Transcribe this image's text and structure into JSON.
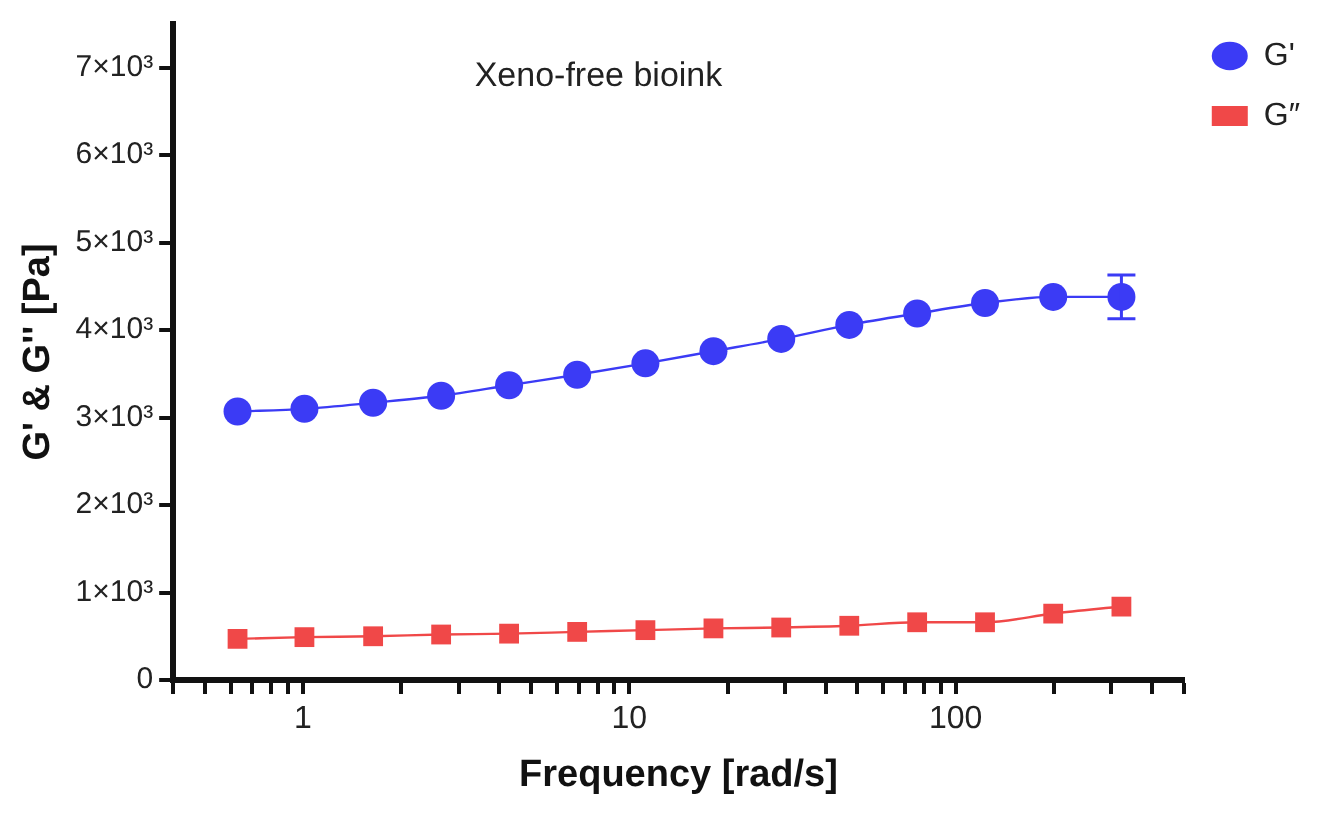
{
  "chart_data": {
    "type": "line",
    "title": "Xeno-free bioink",
    "xlabel": "Frequency [rad/s]",
    "ylabel": "G' & G'' [Pa]",
    "x": [
      0.63,
      1.01,
      1.64,
      2.65,
      4.28,
      6.92,
      11.2,
      18.1,
      29.2,
      47.2,
      76.2,
      123,
      199,
      322
    ],
    "series": [
      {
        "name": "G'",
        "color": "#3b3bf5",
        "marker": "circle",
        "values": [
          3070,
          3100,
          3170,
          3250,
          3370,
          3490,
          3620,
          3760,
          3900,
          4060,
          4190,
          4310,
          4380,
          4380
        ],
        "errors": [
          null,
          null,
          null,
          null,
          null,
          null,
          null,
          null,
          null,
          null,
          null,
          null,
          null,
          250
        ]
      },
      {
        "name": "G″",
        "color": "#f04848",
        "marker": "square",
        "values": [
          470,
          490,
          500,
          520,
          530,
          550,
          570,
          590,
          600,
          620,
          660,
          660,
          760,
          840
        ]
      }
    ],
    "log": "x",
    "xlim": [
      0.4,
      500
    ],
    "xticks": [
      {
        "value": 0.4,
        "label": null
      },
      {
        "value": 0.5,
        "label": null
      },
      {
        "value": 0.6,
        "label": null
      },
      {
        "value": 0.7,
        "label": null
      },
      {
        "value": 0.8,
        "label": null
      },
      {
        "value": 0.9,
        "label": null
      },
      1,
      {
        "value": 2,
        "label": null
      },
      {
        "value": 3,
        "label": null
      },
      {
        "value": 4,
        "label": null
      },
      {
        "value": 5,
        "label": null
      },
      {
        "value": 6,
        "label": null
      },
      {
        "value": 7,
        "label": null
      },
      {
        "value": 8,
        "label": null
      },
      {
        "value": 9,
        "label": null
      },
      10,
      {
        "value": 20,
        "label": null
      },
      {
        "value": 30,
        "label": null
      },
      {
        "value": 40,
        "label": null
      },
      {
        "value": 50,
        "label": null
      },
      {
        "value": 60,
        "label": null
      },
      {
        "value": 70,
        "label": null
      },
      {
        "value": 80,
        "label": null
      },
      {
        "value": 90,
        "label": null
      },
      100,
      {
        "value": 200,
        "label": null
      },
      {
        "value": 300,
        "label": null
      },
      {
        "value": 400,
        "label": null
      },
      {
        "value": 500,
        "label": null
      }
    ],
    "ylim": [
      0,
      7500
    ],
    "yticks": [
      0,
      {
        "value": 1000,
        "label": "1×10³"
      },
      {
        "value": 2000,
        "label": "2×10³"
      },
      {
        "value": 3000,
        "label": "3×10³"
      },
      {
        "value": 4000,
        "label": "4×10³"
      },
      {
        "value": 5000,
        "label": "5×10³"
      },
      {
        "value": 6000,
        "label": "6×10³"
      },
      {
        "value": 7000,
        "label": "7×10³"
      }
    ],
    "grid": false,
    "legend": "top right",
    "line_style": "solid"
  }
}
